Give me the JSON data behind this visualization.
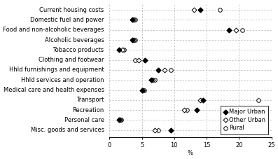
{
  "categories": [
    "Current housing costs",
    "Domestic fuel and power",
    "Food and non-alcoholic beverages",
    "Alcoholic beverages",
    "Tobacco products",
    "Clothing and footwear",
    "Hhld furnishings and equipment",
    "Hhld services and operation",
    "Medical care and health expenses",
    "Transport",
    "Recreation",
    "Personal care",
    "Misc. goods and services"
  ],
  "major_urban": [
    14.0,
    3.5,
    18.5,
    3.5,
    1.5,
    5.5,
    7.5,
    6.5,
    5.0,
    14.5,
    13.5,
    1.5,
    9.5
  ],
  "other_urban": [
    13.0,
    3.7,
    19.5,
    3.7,
    2.0,
    4.5,
    8.5,
    6.7,
    5.2,
    14.0,
    11.5,
    1.7,
    7.0
  ],
  "rural": [
    17.0,
    4.0,
    20.5,
    4.0,
    2.2,
    4.0,
    9.5,
    7.0,
    5.4,
    23.0,
    12.0,
    1.8,
    7.5
  ],
  "xlim": [
    0,
    25
  ],
  "xticks": [
    0,
    5,
    10,
    15,
    20,
    25
  ],
  "xlabel": "%",
  "background_color": "#ffffff",
  "label_fontsize": 6.0,
  "tick_fontsize": 6.0,
  "legend_fontsize": 6.0,
  "marker_size": 3.5,
  "line_color": "#aaaaaa",
  "line_width": 0.5
}
